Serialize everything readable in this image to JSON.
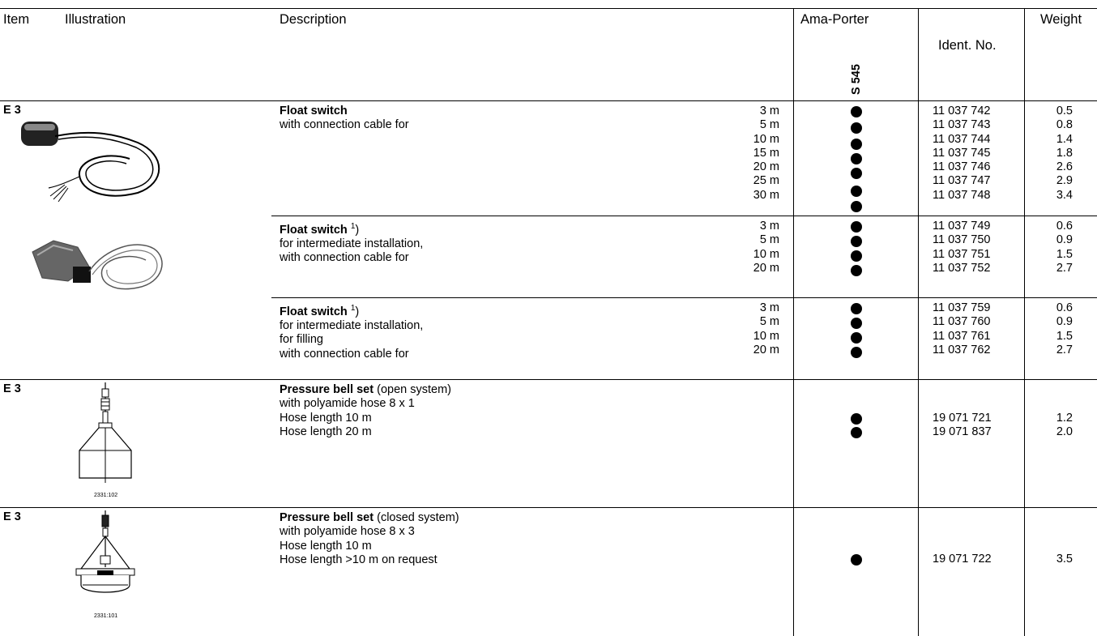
{
  "headers": {
    "item": "Item",
    "illustration": "Illustration",
    "description": "Description",
    "ama_porter": "Ama-Porter",
    "variant": "S 545",
    "ident": "Ident. No.",
    "weight": "Weight"
  },
  "rows": [
    {
      "item": "E 3",
      "title": "Float switch",
      "lines": [
        "with connection cable for"
      ],
      "lengths": [
        "3 m",
        "5 m",
        "10 m",
        "15 m",
        "20 m",
        "25 m",
        "30 m"
      ],
      "idents": [
        "11 037 742",
        "11 037 743",
        "11 037 744",
        "11 037 745",
        "11 037 746",
        "11 037 747",
        "11 037 748"
      ],
      "weights": [
        "0.5",
        "0.8",
        "1.4",
        "1.8",
        "2.6",
        "2.9",
        "3.4"
      ]
    },
    {
      "title": "Float switch",
      "footnote": "1",
      "lines": [
        "for intermediate installation,",
        "with connection cable for"
      ],
      "lengths": [
        "3 m",
        "5 m",
        "10 m",
        "20 m"
      ],
      "idents": [
        "11 037 749",
        "11 037 750",
        "11 037 751",
        "11 037 752"
      ],
      "weights": [
        "0.6",
        "0.9",
        "1.5",
        "2.7"
      ]
    },
    {
      "title": "Float switch",
      "footnote": "1",
      "lines": [
        "for intermediate installation,",
        "for filling",
        "with connection cable for"
      ],
      "lengths": [
        "3 m",
        "5 m",
        "10 m",
        "20 m"
      ],
      "idents": [
        "11 037 759",
        "11 037 760",
        "11 037 761",
        "11 037 762"
      ],
      "weights": [
        "0.6",
        "0.9",
        "1.5",
        "2.7"
      ]
    },
    {
      "item": "E 3",
      "title": "Pressure bell set",
      "title_suffix": "(open system)",
      "lines": [
        "with polyamide hose 8 x 1",
        "Hose length 10 m",
        "Hose length 20 m"
      ],
      "idents": [
        "19 071 721",
        "19 071 837"
      ],
      "weights": [
        "1.2",
        "2.0"
      ],
      "figure_code": "2331:102"
    },
    {
      "item": "E 3",
      "title": "Pressure bell set",
      "title_suffix": "(closed system)",
      "lines": [
        "with polyamide hose 8 x 3",
        "Hose length 10 m",
        "Hose length >10 m on request"
      ],
      "idents": [
        "19 071 722"
      ],
      "weights": [
        "3.5"
      ],
      "figure_code": "2331:101"
    }
  ]
}
